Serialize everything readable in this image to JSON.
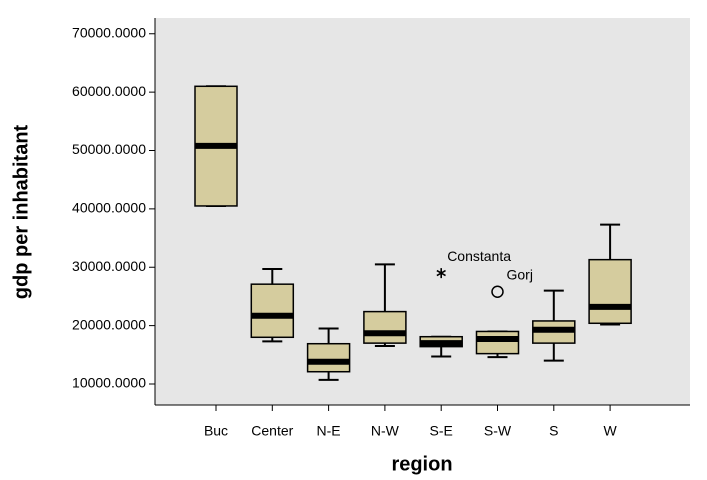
{
  "chart_data": {
    "type": "box",
    "x_label": "region",
    "y_label": "gdp per inhabitant",
    "categories": [
      "Buc",
      "Center",
      "N-E",
      "N-W",
      "S-E",
      "S-W",
      "S",
      "W"
    ],
    "min": [
      40500,
      17300,
      10700,
      16500,
      14700,
      14600,
      14000,
      20200
    ],
    "q1": [
      40500,
      18000,
      12100,
      17000,
      16400,
      15200,
      17000,
      20400
    ],
    "median": [
      50800,
      21700,
      13800,
      18700,
      17000,
      17700,
      19300,
      23200
    ],
    "q3": [
      61000,
      27100,
      16900,
      22400,
      18100,
      19000,
      20800,
      31300
    ],
    "max": [
      61000,
      29700,
      19500,
      30500,
      18100,
      19000,
      26000,
      37300
    ],
    "outliers": [
      {
        "category": "S-E",
        "value": 29000,
        "label": "Constanta",
        "symbol": "star"
      },
      {
        "category": "S-W",
        "value": 25800,
        "label": "Gorj",
        "symbol": "circle"
      }
    ],
    "color": "#d5cc9e",
    "background": "#e6e6e6",
    "ylim": [
      6400,
      72700
    ],
    "yticks": [
      {
        "value": 10000,
        "label": "10000.0000"
      },
      {
        "value": 20000,
        "label": "20000.0000"
      },
      {
        "value": 30000,
        "label": "30000.0000"
      },
      {
        "value": 40000,
        "label": "40000.0000"
      },
      {
        "value": 50000,
        "label": "50000.0000"
      },
      {
        "value": 60000,
        "label": "60000.0000"
      },
      {
        "value": 70000,
        "label": "70000.0000"
      }
    ]
  }
}
